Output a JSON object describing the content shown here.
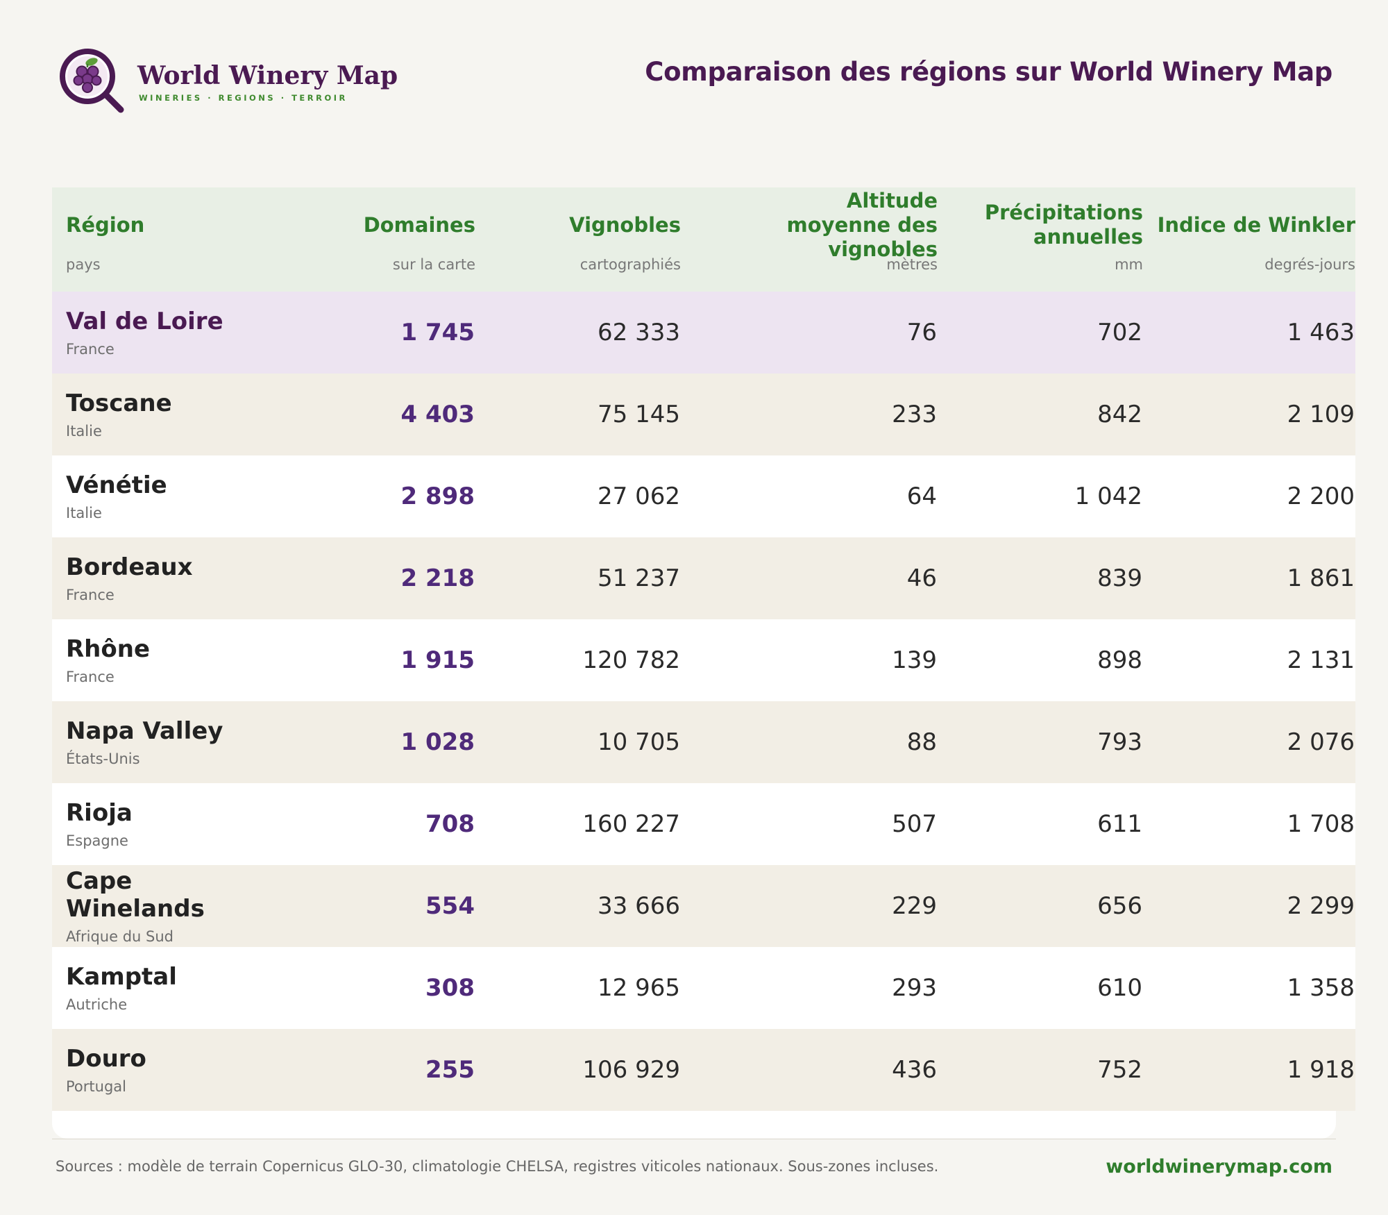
{
  "brand": {
    "name": "World Winery Map",
    "tagline": "WINERIES · REGIONS · TERROIR",
    "colors": {
      "primary": "#4a1a52",
      "accent": "#3f8a2e"
    }
  },
  "page": {
    "title": "Comparaison des régions sur World Winery Map"
  },
  "table": {
    "columns": [
      {
        "label": "Région",
        "sub": "pays"
      },
      {
        "label": "Domaines",
        "sub": "sur la carte"
      },
      {
        "label": "Vignobles",
        "sub": "cartographiés"
      },
      {
        "label": "Altitude moyenne des vignobles",
        "sub": "mètres"
      },
      {
        "label": "Précipitations annuelles",
        "sub": "mm"
      },
      {
        "label": "Indice de Winkler",
        "sub": "degrés-jours"
      }
    ],
    "rows": [
      {
        "region": "Val de Loire",
        "country": "France",
        "domaines": "1 745",
        "vignobles": "62 333",
        "altitude": "76",
        "precip": "702",
        "winkler": "1 463"
      },
      {
        "region": "Toscane",
        "country": "Italie",
        "domaines": "4 403",
        "vignobles": "75 145",
        "altitude": "233",
        "precip": "842",
        "winkler": "2 109"
      },
      {
        "region": "Vénétie",
        "country": "Italie",
        "domaines": "2 898",
        "vignobles": "27 062",
        "altitude": "64",
        "precip": "1 042",
        "winkler": "2 200"
      },
      {
        "region": "Bordeaux",
        "country": "France",
        "domaines": "2 218",
        "vignobles": "51 237",
        "altitude": "46",
        "precip": "839",
        "winkler": "1 861"
      },
      {
        "region": "Rhône",
        "country": "France",
        "domaines": "1 915",
        "vignobles": "120 782",
        "altitude": "139",
        "precip": "898",
        "winkler": "2 131"
      },
      {
        "region": "Napa Valley",
        "country": "États-Unis",
        "domaines": "1 028",
        "vignobles": "10 705",
        "altitude": "88",
        "precip": "793",
        "winkler": "2 076"
      },
      {
        "region": "Rioja",
        "country": "Espagne",
        "domaines": "708",
        "vignobles": "160 227",
        "altitude": "507",
        "precip": "611",
        "winkler": "1 708"
      },
      {
        "region": "Cape Winelands",
        "country": "Afrique du Sud",
        "domaines": "554",
        "vignobles": "33 666",
        "altitude": "229",
        "precip": "656",
        "winkler": "2 299"
      },
      {
        "region": "Kamptal",
        "country": "Autriche",
        "domaines": "308",
        "vignobles": "12 965",
        "altitude": "293",
        "precip": "610",
        "winkler": "1 358"
      },
      {
        "region": "Douro",
        "country": "Portugal",
        "domaines": "255",
        "vignobles": "106 929",
        "altitude": "436",
        "precip": "752",
        "winkler": "1 918"
      }
    ]
  },
  "footer": {
    "sources": "Sources : modèle de terrain Copernicus GLO-30, climatologie CHELSA, registres viticoles nationaux. Sous-zones incluses.",
    "site": "worldwinerymap.com"
  }
}
